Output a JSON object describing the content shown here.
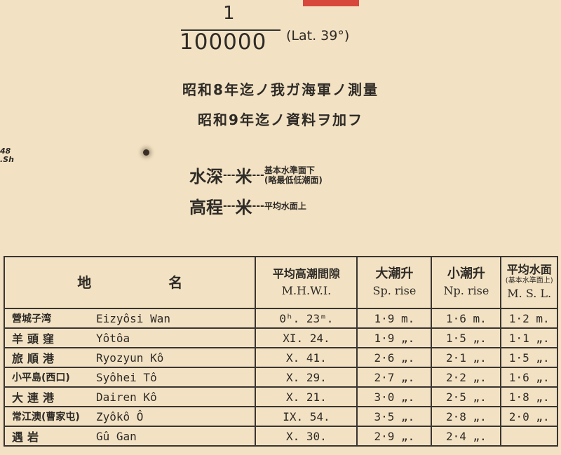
{
  "scale": {
    "numerator": "1",
    "denominator": "100000",
    "latitude": "(Lat. 39°)"
  },
  "notes": [
    "昭和8年迄ノ我ガ海軍ノ測量",
    "昭和9年迄ノ資料ヲ加フ"
  ],
  "edge_text": [
    "48",
    ".Sh"
  ],
  "legend": {
    "depth": {
      "label": "水深",
      "dash1": "---",
      "unit": "米",
      "dash2": "---",
      "ref1": "基本水準面下",
      "ref2": "(略最低低潮面)"
    },
    "height": {
      "label": "高程",
      "dash1": "---",
      "unit": "米",
      "dash2": "---",
      "ref1": "平均水面上"
    }
  },
  "table": {
    "headers": {
      "place_jp1": "地",
      "place_jp2": "名",
      "mhwi_jp": "平均高潮間隙",
      "mhwi": "M.H.W.I.",
      "sp_jp": "大潮升",
      "sp": "Sp. rise",
      "np_jp": "小潮升",
      "np": "Np. rise",
      "msl_jp": "平均水面",
      "msl_sub": "(基本水準面上)",
      "msl": "M. S. L."
    },
    "rows": [
      {
        "jp": "營城子湾",
        "romaji": "Eizyôsi Wan",
        "mhwi": "0ʰ. 23ᵐ.",
        "sp": "1·9 m.",
        "np": "1·6 m.",
        "msl": "1·2 m."
      },
      {
        "jp": "羊頭窪",
        "romaji": "Yôtôa",
        "mhwi": "XI. 24.",
        "sp": "1·9 „.",
        "np": "1·5 „.",
        "msl": "1·1 „."
      },
      {
        "jp": "旅順港",
        "romaji": "Ryozyun Kô",
        "mhwi": "X. 41.",
        "sp": "2·6 „.",
        "np": "2·1 „.",
        "msl": "1·5 „."
      },
      {
        "jp": "小平島(西口)",
        "romaji": "Syôhei Tô",
        "mhwi": "X. 29.",
        "sp": "2·7 „.",
        "np": "2·2 „.",
        "msl": "1·6 „."
      },
      {
        "jp": "大連港",
        "romaji": "Dairen Kô",
        "mhwi": "X. 21.",
        "sp": "3·0 „.",
        "np": "2·5 „.",
        "msl": "1·8 „."
      },
      {
        "jp": "常江澳(曹家屯)",
        "romaji": "Zyôkô Ô",
        "mhwi": "IX. 54.",
        "sp": "3·5 „.",
        "np": "2·8 „.",
        "msl": "2·0 „."
      },
      {
        "jp": "遇岩",
        "romaji": "Gû Gan",
        "mhwi": "X. 30.",
        "sp": "2·9 „.",
        "np": "2·4 „.",
        "msl": ""
      }
    ]
  }
}
